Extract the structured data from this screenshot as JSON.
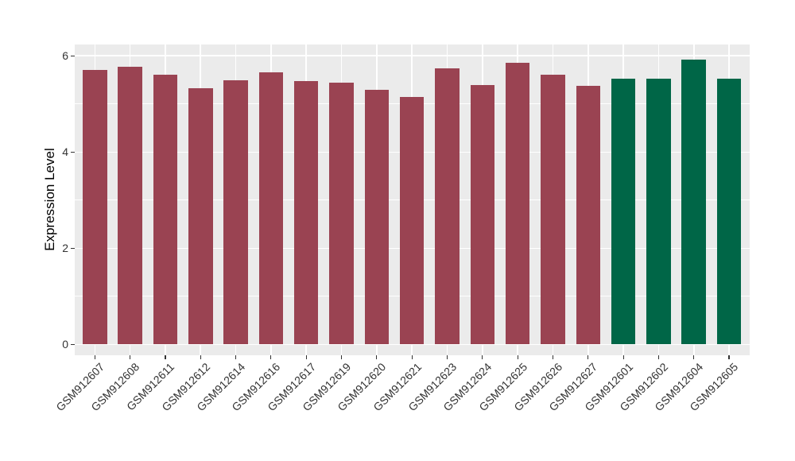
{
  "chart_data": {
    "type": "bar",
    "title": "",
    "xlabel": "",
    "ylabel": "Expression Level",
    "categories": [
      "GSM912607",
      "GSM912608",
      "GSM912611",
      "GSM912612",
      "GSM912614",
      "GSM912616",
      "GSM912617",
      "GSM912619",
      "GSM912620",
      "GSM912621",
      "GSM912623",
      "GSM912624",
      "GSM912625",
      "GSM912626",
      "GSM912627",
      "GSM912601",
      "GSM912602",
      "GSM912604",
      "GSM912605"
    ],
    "values": [
      5.71,
      5.78,
      5.6,
      5.33,
      5.49,
      5.66,
      5.48,
      5.44,
      5.3,
      5.15,
      5.74,
      5.4,
      5.85,
      5.61,
      5.38,
      5.52,
      5.53,
      5.92,
      5.53
    ],
    "bar_colors": [
      "#9A4352",
      "#9A4352",
      "#9A4352",
      "#9A4352",
      "#9A4352",
      "#9A4352",
      "#9A4352",
      "#9A4352",
      "#9A4352",
      "#9A4352",
      "#9A4352",
      "#9A4352",
      "#9A4352",
      "#9A4352",
      "#9A4352",
      "#006647",
      "#006647",
      "#006647",
      "#006647"
    ],
    "group_colors": {
      "left_group": "#9A4352",
      "right_group": "#006647"
    },
    "yticks": [
      0,
      2,
      4,
      6
    ],
    "yminor_ticks": [
      1,
      3,
      5
    ],
    "ylim": [
      -0.22,
      6.45
    ],
    "legend": "none",
    "grid": "major and minor horizontal white lines, vertical white lines at bar centers",
    "panel_background": "#EBEBEB",
    "grid_color": "#FFFFFF",
    "figure_background": "#FFFFFF",
    "axis_text_color": "#333333",
    "axis_title_color": "#000000",
    "tick_mark_color": "#333333"
  }
}
